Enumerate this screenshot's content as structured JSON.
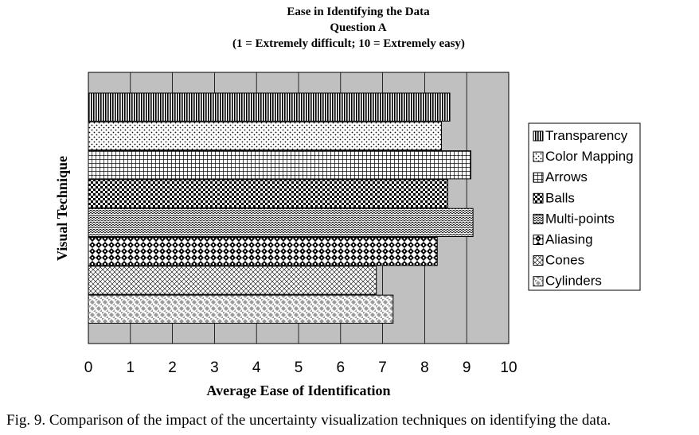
{
  "chart_data": {
    "type": "bar",
    "orientation": "horizontal",
    "title_lines": [
      "Ease in Identifying the Data",
      "Question A",
      "(1 = Extremely difficult; 10 = Extremely easy)"
    ],
    "xlabel": "Average Ease of Identification",
    "ylabel": "Visual Technique",
    "xlim": [
      0,
      10
    ],
    "xticks": [
      "0",
      "1",
      "2",
      "3",
      "4",
      "5",
      "6",
      "7",
      "8",
      "9",
      "10"
    ],
    "grid": true,
    "legend_position": "right",
    "categories": [
      "Transparency",
      "Color Mapping",
      "Arrows",
      "Balls",
      "Multi-points",
      "Aliasing",
      "Cones",
      "Cylinders"
    ],
    "values": [
      8.6,
      8.4,
      9.1,
      8.55,
      9.15,
      8.3,
      6.85,
      7.25
    ],
    "patterns": [
      "vertical-lines",
      "dots",
      "grid",
      "checker",
      "zigzag",
      "diamond-check",
      "crosshatch",
      "diamond-dots"
    ],
    "colors": {
      "plot_background": "#c0c0c0",
      "bar_background": "#ffffff",
      "pattern_ink": "#000000"
    }
  },
  "caption": "Fig. 9.  Comparison of the impact of the uncertainty visualization techniques on identifying the data."
}
